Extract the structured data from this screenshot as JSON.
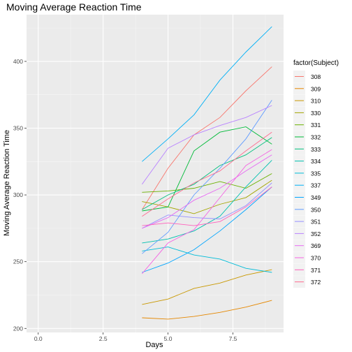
{
  "chart_data": {
    "type": "line",
    "title": "Moving Average Reaction Time",
    "xlabel": "Days",
    "ylabel": "Moving Average Reaction Time",
    "xlim": [
      -0.45,
      9.45
    ],
    "ylim": [
      197,
      435
    ],
    "x_ticks": [
      0,
      2.5,
      5,
      7.5
    ],
    "x_tick_labels": [
      "0.0",
      "2.5",
      "5.0",
      "7.5"
    ],
    "y_ticks": [
      200,
      250,
      300,
      350,
      400
    ],
    "y_tick_labels": [
      "200",
      "250",
      "300",
      "350",
      "400"
    ],
    "grid": true,
    "legend_title": "factor(Subject)",
    "legend_position": "right",
    "x": [
      4,
      5,
      6,
      7,
      8,
      9
    ],
    "series": [
      {
        "name": "308",
        "color": "#F8766D",
        "values": [
          289,
          320,
          345,
          358,
          378,
          396
        ]
      },
      {
        "name": "309",
        "color": "#E58700",
        "values": [
          208,
          207,
          209,
          212,
          216,
          221
        ]
      },
      {
        "name": "310",
        "color": "#C99800",
        "values": [
          218,
          222,
          230,
          234,
          240,
          244
        ]
      },
      {
        "name": "330",
        "color": "#A3A500",
        "values": [
          295,
          291,
          286,
          293,
          298,
          311
        ]
      },
      {
        "name": "331",
        "color": "#6BB100",
        "values": [
          302,
          303,
          305,
          310,
          305,
          316
        ]
      },
      {
        "name": "332",
        "color": "#00BA38",
        "values": [
          288,
          291,
          333,
          347,
          351,
          338
        ]
      },
      {
        "name": "333",
        "color": "#00BF7D",
        "values": [
          289,
          300,
          308,
          322,
          330,
          343
        ]
      },
      {
        "name": "334",
        "color": "#00C0AF",
        "values": [
          264,
          267,
          273,
          284,
          306,
          326
        ]
      },
      {
        "name": "335",
        "color": "#00BCD8",
        "values": [
          258,
          261,
          255,
          252,
          245,
          242
        ]
      },
      {
        "name": "337",
        "color": "#00B0F6",
        "values": [
          325,
          342,
          360,
          386,
          407,
          426
        ]
      },
      {
        "name": "349",
        "color": "#00A5FF",
        "values": [
          242,
          249,
          259,
          273,
          289,
          306
        ]
      },
      {
        "name": "350",
        "color": "#619CFF",
        "values": [
          256,
          272,
          300,
          320,
          342,
          371
        ]
      },
      {
        "name": "351",
        "color": "#9590FF",
        "values": [
          275,
          285,
          283,
          282,
          292,
          309
        ]
      },
      {
        "name": "352",
        "color": "#B983FF",
        "values": [
          308,
          335,
          345,
          352,
          358,
          367
        ]
      },
      {
        "name": "369",
        "color": "#E76BF3",
        "values": [
          275,
          283,
          296,
          305,
          318,
          330
        ]
      },
      {
        "name": "370",
        "color": "#F564E3",
        "values": [
          241,
          264,
          274,
          298,
          322,
          334
        ]
      },
      {
        "name": "371",
        "color": "#FF62BC",
        "values": [
          277,
          279,
          277,
          280,
          291,
          306
        ]
      },
      {
        "name": "372",
        "color": "#FF6C90",
        "values": [
          284,
          297,
          309,
          318,
          333,
          347
        ]
      }
    ]
  }
}
